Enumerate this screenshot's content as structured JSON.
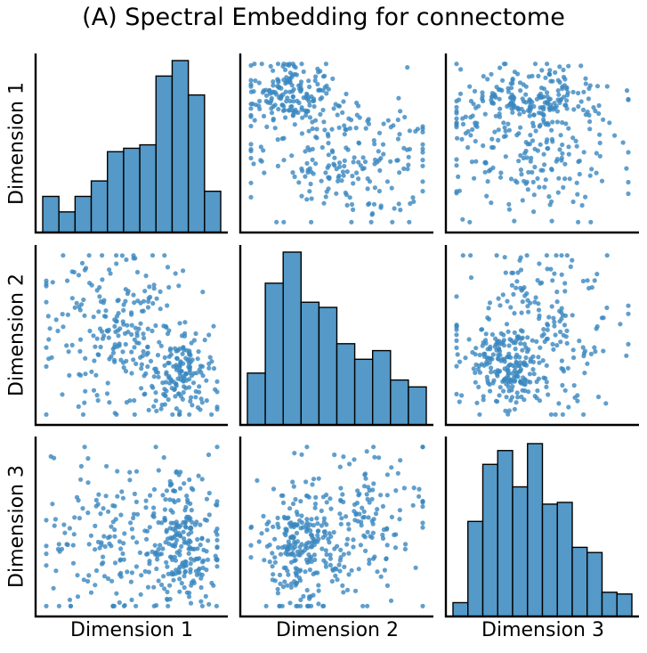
{
  "chart_data": {
    "type": "pairplot",
    "title": "(A) Spectral Embedding for connectome",
    "variables": [
      "Dimension 1",
      "Dimension 2",
      "Dimension 3"
    ],
    "xlabels": [
      "Dimension 1",
      "Dimension 2",
      "Dimension 3"
    ],
    "ylabels": [
      "Dimension 1",
      "Dimension 2",
      "Dimension 3"
    ],
    "color": "#3a87bf",
    "bar_color": "#5499c7",
    "edge_color": "#000000",
    "grid": false,
    "ticks": false,
    "diagonal": [
      {
        "name": "Dimension 1",
        "type": "histogram",
        "bins": 11,
        "relative_counts": [
          0.21,
          0.12,
          0.21,
          0.3,
          0.47,
          0.49,
          0.51,
          0.91,
          1.0,
          0.8,
          0.24
        ]
      },
      {
        "name": "Dimension 2",
        "type": "histogram",
        "bins": 10,
        "relative_counts": [
          0.3,
          0.82,
          1.0,
          0.71,
          0.68,
          0.47,
          0.38,
          0.43,
          0.26,
          0.22
        ]
      },
      {
        "name": "Dimension 3",
        "type": "histogram",
        "bins": 12,
        "relative_counts": [
          0.08,
          0.55,
          0.88,
          0.96,
          0.75,
          1.0,
          0.65,
          0.66,
          0.4,
          0.37,
          0.14,
          0.13
        ]
      }
    ],
    "scatter_panels": [
      {
        "row": 0,
        "col": 1,
        "x": "Dimension 2",
        "y": "Dimension 1",
        "n_points": 380,
        "clusters": [
          {
            "cx": 0.25,
            "cy": 0.8,
            "sx": 0.13,
            "sy": 0.1,
            "weight": 0.45
          },
          {
            "cx": 0.55,
            "cy": 0.4,
            "sx": 0.25,
            "sy": 0.2,
            "weight": 0.55
          }
        ]
      },
      {
        "row": 0,
        "col": 2,
        "x": "Dimension 3",
        "y": "Dimension 1",
        "n_points": 380,
        "clusters": [
          {
            "cx": 0.42,
            "cy": 0.78,
            "sx": 0.2,
            "sy": 0.1,
            "weight": 0.55
          },
          {
            "cx": 0.45,
            "cy": 0.4,
            "sx": 0.25,
            "sy": 0.2,
            "weight": 0.45
          }
        ]
      },
      {
        "row": 1,
        "col": 0,
        "x": "Dimension 1",
        "y": "Dimension 2",
        "n_points": 380,
        "clusters": [
          {
            "cx": 0.78,
            "cy": 0.25,
            "sx": 0.1,
            "sy": 0.13,
            "weight": 0.45
          },
          {
            "cx": 0.4,
            "cy": 0.55,
            "sx": 0.2,
            "sy": 0.25,
            "weight": 0.55
          }
        ]
      },
      {
        "row": 1,
        "col": 2,
        "x": "Dimension 3",
        "y": "Dimension 2",
        "n_points": 380,
        "clusters": [
          {
            "cx": 0.3,
            "cy": 0.3,
            "sx": 0.12,
            "sy": 0.12,
            "weight": 0.45
          },
          {
            "cx": 0.5,
            "cy": 0.55,
            "sx": 0.22,
            "sy": 0.25,
            "weight": 0.55
          }
        ]
      },
      {
        "row": 2,
        "col": 0,
        "x": "Dimension 1",
        "y": "Dimension 3",
        "n_points": 380,
        "clusters": [
          {
            "cx": 0.78,
            "cy": 0.42,
            "sx": 0.1,
            "sy": 0.2,
            "weight": 0.55
          },
          {
            "cx": 0.4,
            "cy": 0.45,
            "sx": 0.2,
            "sy": 0.25,
            "weight": 0.45
          }
        ]
      },
      {
        "row": 2,
        "col": 1,
        "x": "Dimension 2",
        "y": "Dimension 3",
        "n_points": 380,
        "clusters": [
          {
            "cx": 0.3,
            "cy": 0.35,
            "sx": 0.12,
            "sy": 0.18,
            "weight": 0.55
          },
          {
            "cx": 0.58,
            "cy": 0.5,
            "sx": 0.22,
            "sy": 0.25,
            "weight": 0.45
          }
        ]
      }
    ]
  }
}
